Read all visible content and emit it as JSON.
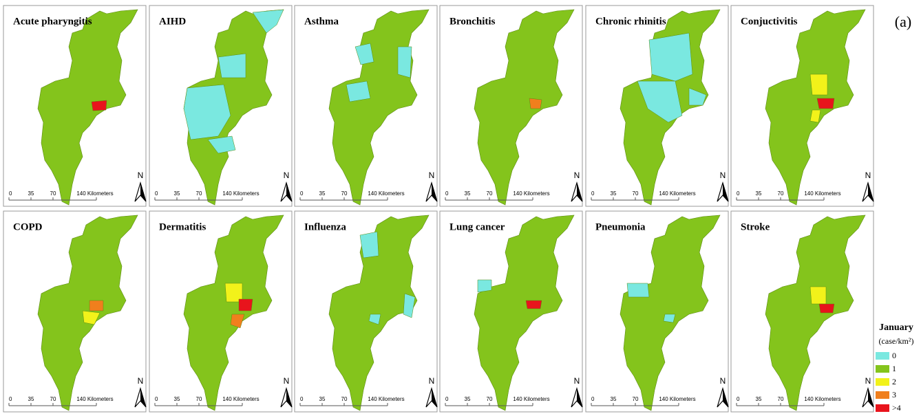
{
  "figure_label": "(a)",
  "panels": [
    {
      "title": "Acute pharyngitis"
    },
    {
      "title": "AIHD"
    },
    {
      "title": "Asthma"
    },
    {
      "title": "Bronchitis"
    },
    {
      "title": "Chronic rhinitis"
    },
    {
      "title": "Conjuctivitis"
    },
    {
      "title": "COPD"
    },
    {
      "title": "Dermatitis"
    },
    {
      "title": "Influenza"
    },
    {
      "title": "Lung cancer"
    },
    {
      "title": "Pneumonia"
    },
    {
      "title": "Stroke"
    }
  ],
  "scale_labels": [
    "0",
    "35",
    "70",
    "140 Kilometers"
  ],
  "north_label": "N",
  "legend": {
    "title": "January",
    "unit": "(case/km²)",
    "items": [
      {
        "label": "0",
        "color": "#7ae8e0"
      },
      {
        "label": "1",
        "color": "#84c41c"
      },
      {
        "label": "2",
        "color": "#f2f21a"
      },
      {
        "label": "3",
        "color": "#f07f1d"
      },
      {
        "label": ">4",
        "color": "#e8141c"
      }
    ]
  }
}
